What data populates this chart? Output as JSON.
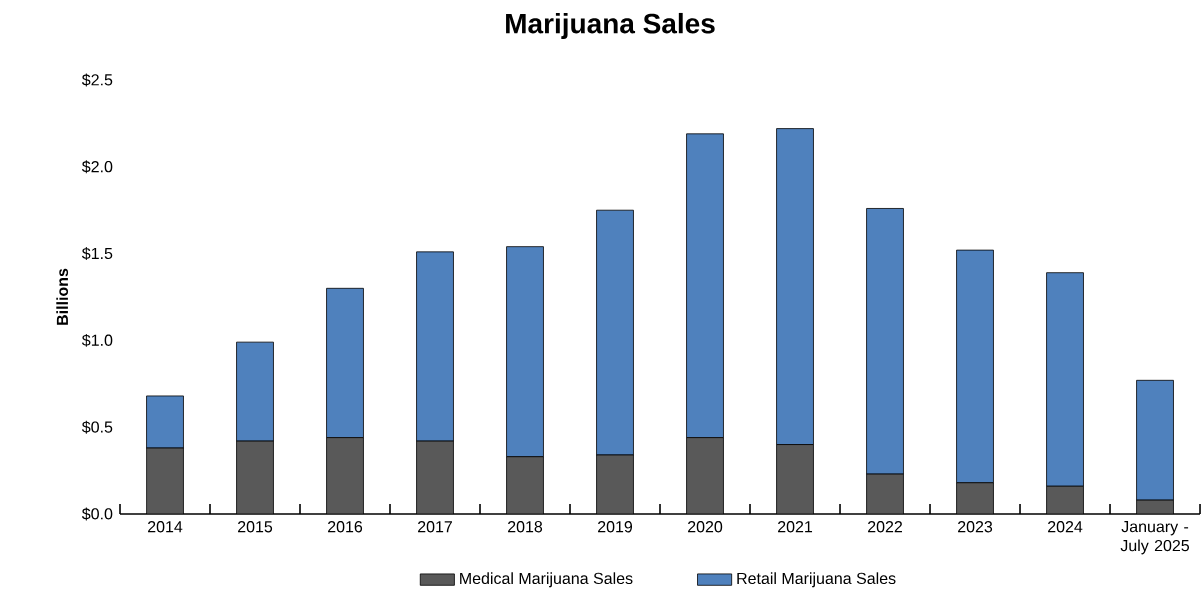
{
  "chart_data": {
    "type": "bar",
    "title": "Marijuana Sales",
    "ylabel": "Billions",
    "categories": [
      "2014",
      "2015",
      "2016",
      "2017",
      "2018",
      "2019",
      "2020",
      "2021",
      "2022",
      "2023",
      "2024",
      "January - July 2025"
    ],
    "stacked": true,
    "series": [
      {
        "name": "Medical Marijuana Sales",
        "color": "#595959",
        "values": [
          0.38,
          0.42,
          0.44,
          0.42,
          0.33,
          0.34,
          0.44,
          0.4,
          0.23,
          0.18,
          0.16,
          0.08
        ]
      },
      {
        "name": "Retail Marijuana Sales",
        "color": "#4f81bd",
        "values": [
          0.3,
          0.57,
          0.86,
          1.09,
          1.21,
          1.41,
          1.75,
          1.82,
          1.53,
          1.34,
          1.23,
          0.69
        ]
      }
    ],
    "ylim": [
      0,
      2.5
    ],
    "yticks": [
      {
        "value": 0,
        "label": "$0.0"
      },
      {
        "value": 0.5,
        "label": "$0.5"
      },
      {
        "value": 1,
        "label": "$1.0"
      },
      {
        "value": 1.5,
        "label": "$1.5"
      },
      {
        "value": 2,
        "label": "$2.0"
      },
      {
        "value": 2.5,
        "label": "$2.5"
      }
    ],
    "grid": false,
    "legend": "bottom"
  }
}
